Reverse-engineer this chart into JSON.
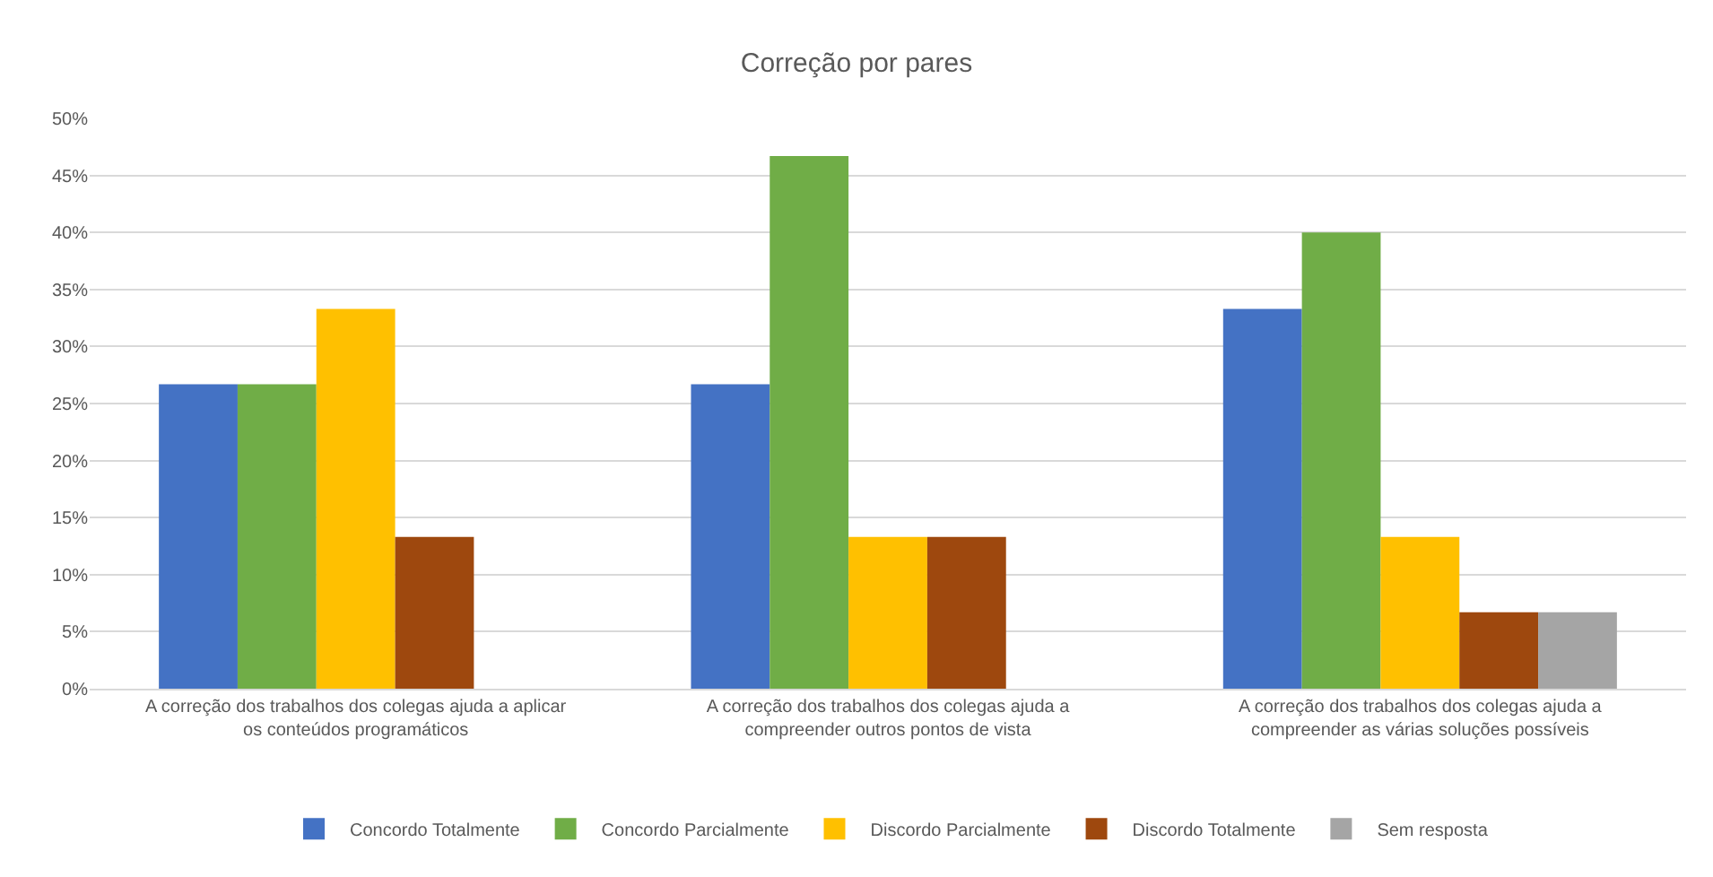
{
  "chart_data": {
    "type": "bar",
    "title": "Correção por pares",
    "categories": [
      "A correção dos trabalhos dos colegas ajuda a aplicar os conteúdos programáticos",
      "A correção dos trabalhos dos colegas ajuda a compreender outros pontos de vista",
      "A correção dos trabalhos dos colegas ajuda a compreender as várias soluções possíveis"
    ],
    "series": [
      {
        "name": "Concordo Totalmente",
        "color": "#4472c4",
        "values": [
          26.7,
          26.7,
          33.3
        ]
      },
      {
        "name": "Concordo Parcialmente",
        "color": "#70ad47",
        "values": [
          26.7,
          46.7,
          40
        ]
      },
      {
        "name": "Discordo Parcialmente",
        "color": "#ffc000",
        "values": [
          33.3,
          13.3,
          13.3
        ]
      },
      {
        "name": "Discordo Totalmente",
        "color": "#9e480e",
        "values": [
          13.3,
          13.3,
          6.7
        ]
      },
      {
        "name": "Sem resposta",
        "color": "#a5a5a5",
        "values": [
          null,
          null,
          6.7
        ]
      }
    ],
    "ylim": [
      0,
      50
    ],
    "yticks": [
      {
        "value": 0,
        "label": "0%"
      },
      {
        "value": 5,
        "label": "5%"
      },
      {
        "value": 10,
        "label": "10%"
      },
      {
        "value": 15,
        "label": "15%"
      },
      {
        "value": 20,
        "label": "20%"
      },
      {
        "value": 25,
        "label": "25%"
      },
      {
        "value": 30,
        "label": "30%"
      },
      {
        "value": 35,
        "label": "35%"
      },
      {
        "value": 40,
        "label": "40%"
      },
      {
        "value": 45,
        "label": "45%"
      },
      {
        "value": 50,
        "label": "50%"
      }
    ],
    "grid": "y",
    "legend": "bottom"
  }
}
